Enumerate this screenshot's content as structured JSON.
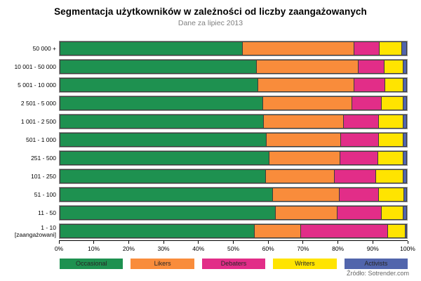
{
  "title": "Segmentacja użytkowników w zależności od liczby zaangażowanych",
  "subtitle": "Dane za lipiec 2013",
  "source": "Źródło: Sotrender.com",
  "chart_data": {
    "type": "bar",
    "orientation": "horizontal",
    "stacked": true,
    "unit": "%",
    "title": "Segmentacja użytkowników w zależności od liczby zaangażowanych",
    "subtitle": "Dane za lipiec 2013",
    "categories": [
      "50 000 +",
      "10 001 - 50 000",
      "5 001 - 10 000",
      "2 501 - 5 000",
      "1 001 - 2 500",
      "501 - 1 000",
      "251 - 500",
      "101 - 250",
      "51 - 100",
      "11 - 50",
      "1 - 10"
    ],
    "last_category_note": "[zaangażowani]",
    "series": [
      {
        "name": "Occasional",
        "color": "#1E9150",
        "values": [
          52.7,
          56.8,
          57.1,
          58.6,
          58.7,
          59.5,
          60.4,
          59.4,
          61.5,
          62.2,
          56.2
        ]
      },
      {
        "name": "Likers",
        "color": "#F98C3B",
        "values": [
          32.2,
          29.3,
          27.7,
          25.7,
          23.1,
          21.6,
          20.4,
          19.8,
          19.1,
          17.8,
          13.2
        ]
      },
      {
        "name": "Debaters",
        "color": "#E22D88",
        "values": [
          7.3,
          7.4,
          8.9,
          8.5,
          10.2,
          10.8,
          10.9,
          11.9,
          11.3,
          12.7,
          25.2
        ]
      },
      {
        "name": "Writers",
        "color": "#FFE400",
        "values": [
          6.3,
          5.4,
          5.3,
          6.2,
          6.9,
          7.1,
          7.3,
          7.8,
          7.3,
          6.2,
          4.9
        ]
      },
      {
        "name": "Activists",
        "color": "#5165AC",
        "values": [
          1.5,
          1.1,
          1.0,
          1.0,
          1.1,
          1.0,
          1.0,
          1.1,
          0.8,
          1.1,
          0.5
        ]
      }
    ],
    "x_ticks": [
      "0%",
      "10%",
      "20%",
      "30%",
      "40%",
      "50%",
      "60%",
      "70%",
      "80%",
      "90%",
      "100%"
    ],
    "xlim": [
      0,
      100
    ],
    "grid": false,
    "legend_position": "bottom"
  }
}
